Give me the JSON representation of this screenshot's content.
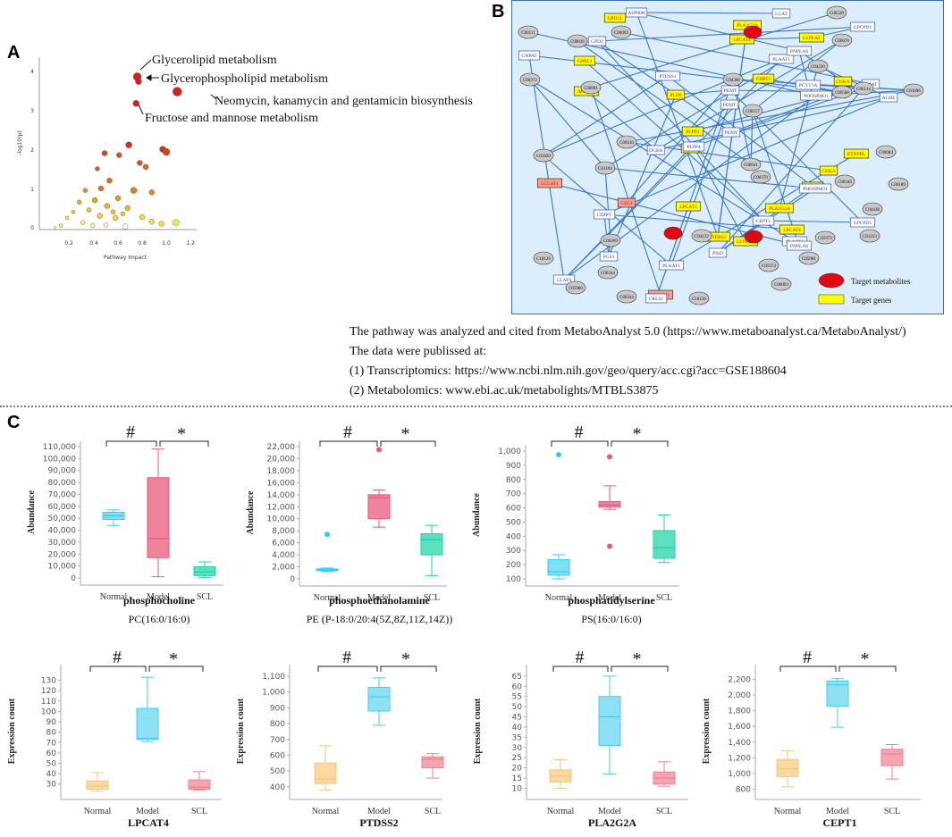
{
  "panel_labels": {
    "a": "A",
    "b": "B",
    "c": "C"
  },
  "panel_a": {
    "ylabel": "-log10(p)",
    "xlabel": "Pathway Impact",
    "xticks": [
      "0.2",
      "0.4",
      "0.6",
      "0.8",
      "1.0",
      "1.2"
    ],
    "yticks": [
      "0",
      "1",
      "2",
      "3",
      "4"
    ],
    "annotations": [
      "Glycerolipid metabolism",
      "Glycerophospholipid metabolism",
      "Neomycin, kanamycin and gentamicin biosynthesis",
      "Fructose and mannose metabolism"
    ]
  },
  "panel_b": {
    "legend": {
      "metabolites": "Target metabolites",
      "genes": "Target genes"
    },
    "yellow_nodes": [
      "GPD1L",
      "PLA2G2A",
      "LPCAT4",
      "LYPLA1",
      "GPAT4",
      "CHPT1",
      "CHKA",
      "AGPAT1",
      "PLD6",
      "PLPP4",
      "PLD6",
      "ETNPPL",
      "CHKA",
      "PCYT2",
      "PLA2G2A",
      "LPCAT4",
      "LPCAT4",
      "LYPLA1",
      "PTDSS2"
    ],
    "salmon_nodes": [
      "LCLAT1",
      "CEL1",
      "LCLAT1"
    ],
    "blue_nodes": [
      "ADPRM",
      "LCAT",
      "GPCPD1",
      "GPD2",
      "GNPAT",
      "PLAAT1",
      "PNPLA6",
      "PTDSS1",
      "PEMT",
      "PEMT",
      "PEMT",
      "PCYT1A",
      "CHAT",
      "PHOSPHO1",
      "ACHE",
      "DGKK",
      "PLPP4",
      "CDIPT",
      "CEPT1",
      "PHOSPHO1",
      "CRLS1",
      "PGS1",
      "PISD",
      "PLAAT1",
      "PLAAT1",
      "PNPLA6",
      "GPCPD1",
      "CLATS"
    ],
    "grey_nodes": [
      "C00228",
      "C00093",
      "C00111",
      "C00039",
      "C00670",
      "C04230",
      "C00372",
      "C00681",
      "C04308",
      "C00157",
      "C00588",
      "C00114",
      "C01996",
      "C00416",
      "C00641",
      "C05820",
      "C01194",
      "C00269",
      "C00570",
      "C00346",
      "C00084",
      "C00189",
      "C04438",
      "C01233",
      "C05973",
      "C04122",
      "C00093",
      "C05980",
      "C00344",
      "C18126",
      "C05981",
      "C05974",
      "C00344",
      "C18126"
    ],
    "red_nodes": [
      "",
      "",
      ""
    ]
  },
  "source_text": [
    "The pathway was analyzed and cited from MetaboAnalyst 5.0 (https://www.metaboanalyst.ca/MetaboAnalyst/)",
    "The data were publissed at:",
    "(1) Transcriptomics:  https://www.ncbi.nlm.nih.gov/geo/query/acc.cgi?acc=GSE188604",
    "(2) Metabolomics: www.ebi.ac.uk/metabolights/MTBLS3875"
  ],
  "marks": {
    "hash": "#",
    "star": "*"
  },
  "groups": [
    "Normal",
    "Model",
    "SCL"
  ],
  "chart_data": [
    {
      "type": "box",
      "ylabel": "Abundance",
      "title": "phosphocholine",
      "subtitle": "PC(16:0/16:0)",
      "yticks": [
        "0",
        "10,000",
        "20,000",
        "30,000",
        "40,000",
        "50,000",
        "60,000",
        "70,000",
        "80,000",
        "90,000",
        "100,000",
        "110,000"
      ],
      "ymin": 0,
      "ymax": 110000,
      "boxes": [
        {
          "group": "Normal",
          "min": 44000,
          "q1": 49000,
          "median": 52000,
          "q3": 55000,
          "max": 57000,
          "color": "#33ccee",
          "fill": "#7fe0f5",
          "outliers": []
        },
        {
          "group": "Model",
          "min": 1000,
          "q1": 17000,
          "median": 33000,
          "q3": 84000,
          "max": 108000,
          "color": "#e8587a",
          "fill": "#f0839c",
          "outliers": []
        },
        {
          "group": "SCL",
          "min": 500,
          "q1": 2000,
          "median": 5000,
          "q3": 9500,
          "max": 13500,
          "color": "#1bd1a5",
          "fill": "#5de0bf",
          "outliers": []
        }
      ]
    },
    {
      "type": "box",
      "ylabel": "Abundance",
      "title": "phosphoethanolamine",
      "subtitle": "PE (P-18:0/20:4(5Z,8Z,11Z,14Z))",
      "yticks": [
        "0",
        "2,000",
        "4,000",
        "6,000",
        "8,000",
        "10,000",
        "12,000",
        "14,000",
        "16,000",
        "18,000",
        "20,000",
        "22,000"
      ],
      "ymin": 0,
      "ymax": 22000,
      "boxes": [
        {
          "group": "Normal",
          "min": 1200,
          "q1": 1350,
          "median": 1500,
          "q3": 1650,
          "max": 1800,
          "color": "#33ccee",
          "fill": "#7fe0f5",
          "outliers": [
            7400
          ]
        },
        {
          "group": "Model",
          "min": 8600,
          "q1": 10000,
          "median": 13500,
          "q3": 14000,
          "max": 14800,
          "color": "#e8587a",
          "fill": "#f0839c",
          "outliers": [
            21500
          ]
        },
        {
          "group": "SCL",
          "min": 500,
          "q1": 4000,
          "median": 6500,
          "q3": 7500,
          "max": 8900,
          "color": "#1bd1a5",
          "fill": "#5de0bf",
          "outliers": []
        }
      ]
    },
    {
      "type": "box",
      "ylabel": "Abundance",
      "title": "phosphatidylserine",
      "subtitle": "PS(16:0/16:0)",
      "yticks": [
        "100",
        "200",
        "300",
        "400",
        "500",
        "600",
        "700",
        "800",
        "900",
        "1,000"
      ],
      "ymin": 100,
      "ymax": 1000,
      "boxes": [
        {
          "group": "Normal",
          "min": 100,
          "q1": 125,
          "median": 150,
          "q3": 235,
          "max": 270,
          "color": "#33ccee",
          "fill": "#7fe0f5",
          "outliers": [
            975
          ]
        },
        {
          "group": "Model",
          "min": 590,
          "q1": 605,
          "median": 620,
          "q3": 645,
          "max": 755,
          "color": "#e8587a",
          "fill": "#f0839c",
          "outliers": [
            960,
            330
          ]
        },
        {
          "group": "SCL",
          "min": 215,
          "q1": 245,
          "median": 320,
          "q3": 440,
          "max": 550,
          "color": "#1bd1a5",
          "fill": "#5de0bf",
          "outliers": []
        }
      ]
    },
    {
      "type": "box",
      "ylabel": "Expression count",
      "title": "LPCAT4",
      "subtitle": "",
      "yticks": [
        "30",
        "40",
        "50",
        "60",
        "70",
        "80",
        "90",
        "100",
        "110",
        "120",
        "130"
      ],
      "ymin": 22,
      "ymax": 140,
      "boxes": [
        {
          "group": "Normal",
          "min": 23,
          "q1": 25,
          "median": 28,
          "q3": 33,
          "max": 41,
          "color": "#f5c67a",
          "fill": "#fad9a0",
          "outliers": []
        },
        {
          "group": "Model",
          "min": 71,
          "q1": 73,
          "median": 74,
          "q3": 103,
          "max": 133,
          "color": "#44ccee",
          "fill": "#8ee1f5",
          "outliers": []
        },
        {
          "group": "SCL",
          "min": 24,
          "q1": 25,
          "median": 27,
          "q3": 34,
          "max": 42,
          "color": "#f08090",
          "fill": "#f5a5b0",
          "outliers": []
        }
      ]
    },
    {
      "type": "box",
      "ylabel": "Expression count",
      "title": "PTDSS2",
      "subtitle": "",
      "yticks": [
        "400",
        "500",
        "600",
        "700",
        "800",
        "900",
        "1,000",
        "1,100"
      ],
      "ymin": 365,
      "ymax": 1140,
      "boxes": [
        {
          "group": "Normal",
          "min": 380,
          "q1": 420,
          "median": 450,
          "q3": 550,
          "max": 660,
          "color": "#f5c67a",
          "fill": "#fad9a0",
          "outliers": []
        },
        {
          "group": "Model",
          "min": 790,
          "q1": 880,
          "median": 970,
          "q3": 1030,
          "max": 1090,
          "color": "#44ccee",
          "fill": "#8ee1f5",
          "outliers": []
        },
        {
          "group": "SCL",
          "min": 455,
          "q1": 520,
          "median": 575,
          "q3": 590,
          "max": 610,
          "color": "#f08090",
          "fill": "#f5a5b0",
          "outliers": []
        }
      ]
    },
    {
      "type": "box",
      "ylabel": "Expression count",
      "title": "PLA2G2A",
      "subtitle": "",
      "yticks": [
        "10",
        "15",
        "20",
        "25",
        "30",
        "35",
        "40",
        "45",
        "50",
        "55",
        "60",
        "65"
      ],
      "ymin": 8,
      "ymax": 68,
      "boxes": [
        {
          "group": "Normal",
          "min": 10,
          "q1": 13,
          "median": 16,
          "q3": 19,
          "max": 24,
          "color": "#f5c67a",
          "fill": "#fad9a0",
          "outliers": []
        },
        {
          "group": "Model",
          "min": 17,
          "q1": 31,
          "median": 45,
          "q3": 55,
          "max": 65,
          "color": "#44ccee",
          "fill": "#8ee1f5",
          "outliers": []
        },
        {
          "group": "SCL",
          "min": 11,
          "q1": 12,
          "median": 15,
          "q3": 18,
          "max": 23,
          "color": "#f08090",
          "fill": "#f5a5b0",
          "outliers": []
        }
      ]
    },
    {
      "type": "box",
      "ylabel": "Expression count",
      "title": "CEPT1",
      "subtitle": "",
      "yticks": [
        "800",
        "1,000",
        "1,200",
        "1,400",
        "1,600",
        "1,800",
        "2,000",
        "2,200"
      ],
      "ymin": 760,
      "ymax": 2320,
      "boxes": [
        {
          "group": "Normal",
          "min": 830,
          "q1": 960,
          "median": 1060,
          "q3": 1180,
          "max": 1290,
          "color": "#f5c67a",
          "fill": "#fad9a0",
          "outliers": []
        },
        {
          "group": "Model",
          "min": 1590,
          "q1": 1860,
          "median": 2130,
          "q3": 2180,
          "max": 2210,
          "color": "#44ccee",
          "fill": "#8ee1f5",
          "outliers": []
        },
        {
          "group": "SCL",
          "min": 930,
          "q1": 1100,
          "median": 1250,
          "q3": 1310,
          "max": 1370,
          "color": "#f08090",
          "fill": "#f5a5b0",
          "outliers": []
        }
      ]
    }
  ]
}
